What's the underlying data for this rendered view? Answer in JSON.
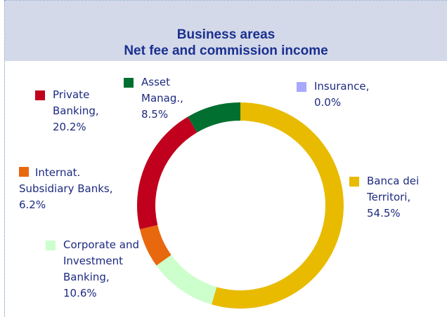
{
  "chart_data": {
    "type": "donut",
    "title": "Business areas",
    "subtitle": "Net fee and commission income",
    "categories": [
      "Banca dei Territori,",
      "Corporate and Investment Banking,",
      "Internat. Subsidiary Banks,",
      "Private Banking,",
      "Asset Manag.,",
      "Insurance,"
    ],
    "values": [
      54.5,
      10.6,
      6.2,
      20.2,
      8.5,
      0.0
    ],
    "value_labels": [
      "54.5%",
      "10.6%",
      "6.2%",
      "20.2%",
      "8.5%",
      "0.0%"
    ],
    "colors": [
      "#e8bb00",
      "#ccffcc",
      "#e8680e",
      "#c0001c",
      "#006f30",
      "#a8a8ff"
    ]
  }
}
